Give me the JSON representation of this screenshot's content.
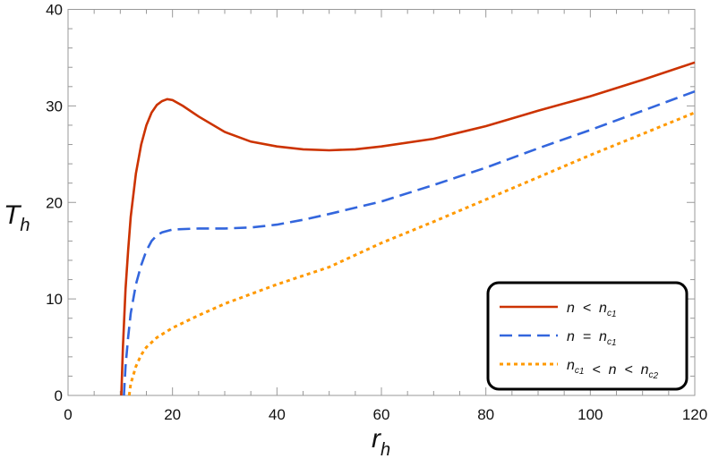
{
  "chart_data": {
    "type": "line",
    "title": "",
    "xlabel": "r",
    "xlabel_sub": "h",
    "ylabel": "T",
    "ylabel_sub": "h",
    "xlim": [
      0,
      120
    ],
    "ylim": [
      0,
      40
    ],
    "xticks": [
      0,
      20,
      40,
      60,
      80,
      100,
      120
    ],
    "yticks": [
      0,
      10,
      20,
      30,
      40
    ],
    "grid": false,
    "legend_placement": "bottom-right",
    "series": [
      {
        "name": "n < n_c1",
        "legend": {
          "a": "n",
          "op": "<",
          "b": "n",
          "b_sub": "c",
          "b_subsub": "1"
        },
        "color": "#cc3300",
        "dash": "solid",
        "x": [
          10.2,
          10.5,
          11,
          11.5,
          12,
          13,
          14,
          15,
          16,
          17,
          18,
          19,
          20,
          22,
          25,
          30,
          35,
          40,
          45,
          50,
          55,
          60,
          70,
          80,
          90,
          100,
          110,
          120
        ],
        "y": [
          0,
          5,
          11,
          15,
          18.5,
          23,
          26,
          28,
          29.3,
          30.1,
          30.5,
          30.7,
          30.6,
          30,
          28.9,
          27.3,
          26.3,
          25.8,
          25.5,
          25.4,
          25.5,
          25.8,
          26.6,
          27.9,
          29.5,
          31,
          32.7,
          34.5
        ]
      },
      {
        "name": "n = n_c1",
        "legend": {
          "a": "n",
          "op": "=",
          "b": "n",
          "b_sub": "c",
          "b_subsub": "1"
        },
        "color": "#3366dd",
        "dash": "dashed",
        "x": [
          10.7,
          11,
          11.5,
          12,
          13,
          14,
          15,
          16,
          17,
          18,
          20,
          25,
          30,
          35,
          40,
          45,
          50,
          60,
          70,
          80,
          90,
          100,
          110,
          120
        ],
        "y": [
          0,
          3,
          6,
          8.5,
          11.5,
          13.5,
          15,
          16,
          16.6,
          16.9,
          17.2,
          17.3,
          17.3,
          17.4,
          17.7,
          18.2,
          18.8,
          20.1,
          21.8,
          23.6,
          25.6,
          27.5,
          29.5,
          31.5
        ]
      },
      {
        "name": "n_c1 < n < n_c2",
        "legend": {
          "a": "n",
          "a_sub": "c",
          "a_subsub": "1",
          "op": "<",
          "m": "n",
          "op2": "<",
          "b": "n",
          "b_sub": "c",
          "b_subsub": "2"
        },
        "color": "#ff9900",
        "dash": "dotted",
        "x": [
          11.7,
          12,
          13,
          14,
          15,
          17,
          20,
          25,
          30,
          35,
          40,
          50,
          60,
          70,
          80,
          90,
          100,
          110,
          120
        ],
        "y": [
          0,
          1.2,
          3,
          4.2,
          5,
          6,
          7,
          8.3,
          9.5,
          10.5,
          11.5,
          13.3,
          15.8,
          18,
          20.3,
          22.6,
          24.9,
          27.1,
          29.3
        ]
      }
    ]
  }
}
